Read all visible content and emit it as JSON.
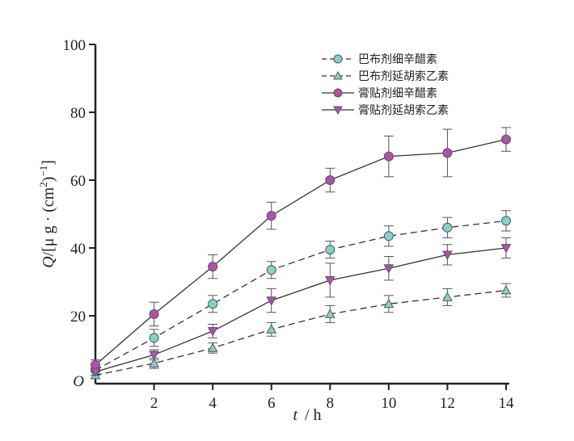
{
  "chart_data": {
    "type": "line",
    "origin_label": "O",
    "xlabel": {
      "var": "t",
      "unit": "/ h"
    },
    "ylabel": {
      "var": "Q",
      "rest": "/[μ g · (cm",
      "sup1": "2",
      "close": ")",
      "sup2": "−1",
      "end": "]"
    },
    "x": [
      0,
      2,
      4,
      6,
      8,
      10,
      12,
      14
    ],
    "xticks": [
      "2",
      "4",
      "6",
      "8",
      "10",
      "12",
      "14"
    ],
    "yticks": [
      "20",
      "40",
      "60",
      "80",
      "100"
    ],
    "xlim": [
      0,
      14
    ],
    "ylim": [
      0,
      100
    ],
    "legend_position": "top-right",
    "series": [
      {
        "name": "巴布剂细辛醋素",
        "line": "dashed",
        "marker": "circle",
        "color": "#7fd3cf",
        "values": [
          4,
          13.5,
          23.5,
          33.5,
          39.5,
          43.5,
          46,
          48
        ],
        "errors": [
          1.5,
          2.5,
          2.5,
          2.5,
          2.5,
          3,
          3,
          3
        ]
      },
      {
        "name": "巴布剂延胡索乙素",
        "line": "dashed",
        "marker": "triangle-up",
        "color": "#7fd3cf",
        "values": [
          2.5,
          6,
          10.5,
          16,
          20.5,
          23.5,
          25.5,
          27.5
        ],
        "errors": [
          1,
          1.5,
          1.5,
          2,
          2.5,
          2.5,
          2.5,
          2
        ]
      },
      {
        "name": "膏贴剂细辛醋素",
        "line": "solid",
        "marker": "circle",
        "color": "#b24fb0",
        "values": [
          5.5,
          20.5,
          34.5,
          49.5,
          60,
          67,
          68,
          72
        ],
        "errors": [
          1.5,
          3.5,
          3.5,
          4,
          3.5,
          6,
          7,
          3.5
        ]
      },
      {
        "name": "膏贴剂延胡索乙素",
        "line": "solid",
        "marker": "triangle-down",
        "color": "#b24fb0",
        "values": [
          3.5,
          8.5,
          15.5,
          24.5,
          30.5,
          34,
          38,
          40
        ],
        "errors": [
          1,
          1.5,
          2,
          3.5,
          5,
          3.5,
          3,
          3
        ]
      }
    ]
  }
}
